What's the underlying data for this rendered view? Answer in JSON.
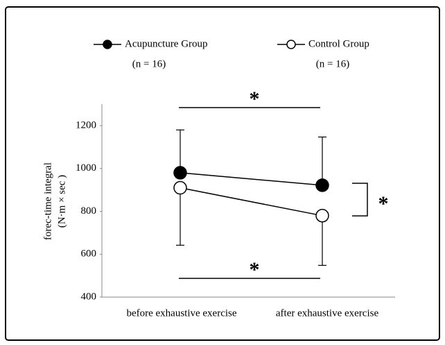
{
  "chart_data": {
    "type": "line",
    "ylabel": [
      "forec-time integral",
      "(N·m × sec )"
    ],
    "categories": [
      "before exhaustive exercise",
      "after exhaustive exercise"
    ],
    "series": [
      {
        "name": "Acupuncture Group",
        "sample": "(n = 16)",
        "color": "#000000",
        "marker_fill": "#000000",
        "values": [
          980,
          922
        ],
        "errors": [
          200,
          225
        ],
        "error_direction": "up"
      },
      {
        "name": "Control Group",
        "sample": "(n = 16)",
        "color": "#000000",
        "marker_fill": "#ffffff",
        "values": [
          910,
          780
        ],
        "errors": [
          268,
          232
        ],
        "error_direction": "down"
      }
    ],
    "ylim": [
      400,
      1200
    ],
    "yticks": [
      400,
      600,
      800,
      1000,
      1200
    ],
    "annotations": [
      "*",
      "*",
      "*"
    ],
    "grid": false,
    "legend": "top"
  }
}
